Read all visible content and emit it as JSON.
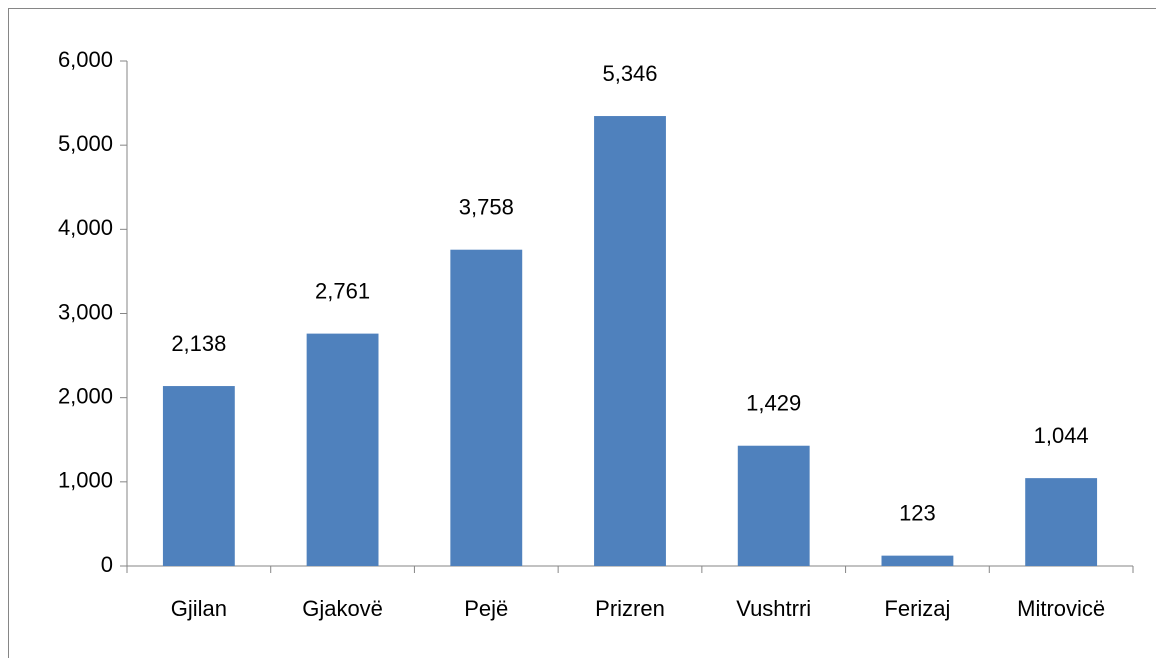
{
  "chart_data": {
    "type": "bar",
    "categories": [
      "Gjilan",
      "Gjakovë",
      "Pejë",
      "Prizren",
      "Vushtrri",
      "Ferizaj",
      "Mitrovicë"
    ],
    "values": [
      2138,
      2761,
      3758,
      5346,
      1429,
      123,
      1044
    ],
    "value_labels": [
      "2,138",
      "2,761",
      "3,758",
      "5,346",
      "1,429",
      "123",
      "1,044"
    ],
    "color": "#4f81bd",
    "ylim": [
      0,
      6000
    ],
    "yticks": [
      0,
      {
        "value": 1000,
        "label": "1,000"
      },
      {
        "value": 2000,
        "label": "2,000"
      },
      {
        "value": 3000,
        "label": "3,000"
      },
      {
        "value": 4000,
        "label": "4,000"
      },
      {
        "value": 5000,
        "label": "5,000"
      },
      {
        "value": 6000,
        "label": "6,000"
      }
    ],
    "grid": false
  }
}
